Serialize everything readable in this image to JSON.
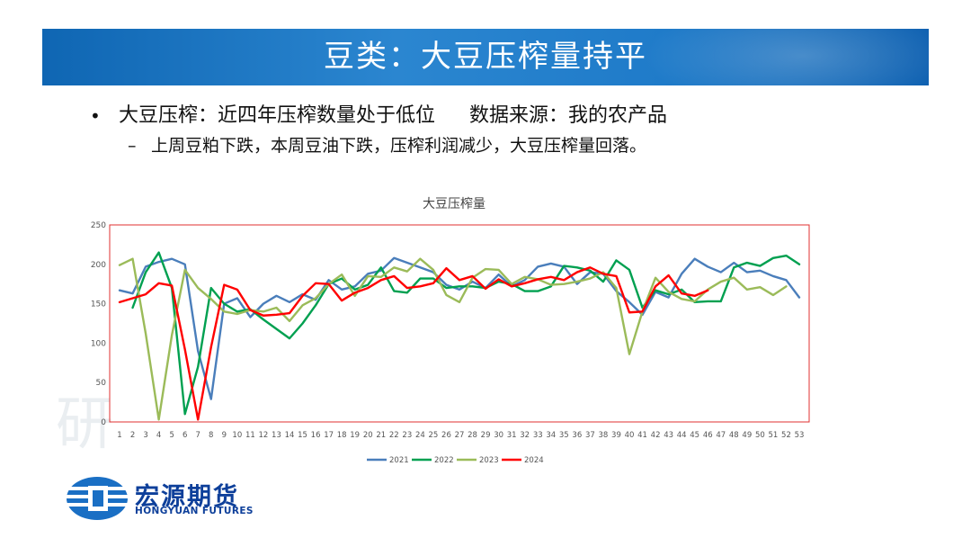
{
  "slide": {
    "title": "豆类：大豆压榨量持平",
    "bullet1": "大豆压榨：近四年压榨数量处于低位",
    "source": "数据来源：我的农产品",
    "bullet2": "上周豆粕下跌，本周豆油下跌，压榨利润减少，大豆压榨量回落。",
    "bullet_symbol": "•",
    "dash_symbol": "–"
  },
  "logo": {
    "name_cn": "宏源期货",
    "name_en": "HONGYUAN FUTURES"
  },
  "chart_data": {
    "type": "line",
    "title": "大豆压榨量",
    "xlabel": "",
    "ylabel": "",
    "x": [
      1,
      2,
      3,
      4,
      5,
      6,
      7,
      8,
      9,
      10,
      11,
      12,
      13,
      14,
      15,
      16,
      17,
      18,
      19,
      20,
      21,
      22,
      23,
      24,
      25,
      26,
      27,
      28,
      29,
      30,
      31,
      32,
      33,
      34,
      35,
      36,
      37,
      38,
      39,
      40,
      41,
      42,
      43,
      44,
      45,
      46,
      47,
      48,
      49,
      50,
      51,
      52,
      53
    ],
    "ylim": [
      0,
      250
    ],
    "yticks": [
      0,
      50,
      100,
      150,
      200,
      250
    ],
    "grid": false,
    "legend_position": "bottom",
    "series": [
      {
        "name": "2021",
        "color": "#4a7ebb",
        "values": [
          167,
          163,
          197,
          203,
          207,
          200,
          90,
          29,
          150,
          157,
          133,
          150,
          160,
          152,
          162,
          155,
          180,
          168,
          172,
          188,
          192,
          208,
          202,
          196,
          190,
          174,
          168,
          178,
          170,
          187,
          172,
          180,
          197,
          201,
          197,
          175,
          190,
          188,
          166,
          152,
          136,
          165,
          158,
          188,
          207,
          197,
          190,
          202,
          190,
          192,
          185,
          180,
          158
        ]
      },
      {
        "name": "2022",
        "color": "#00a050",
        "values": [
          null,
          145,
          190,
          215,
          170,
          10,
          70,
          170,
          150,
          140,
          143,
          130,
          118,
          106,
          125,
          148,
          175,
          182,
          168,
          174,
          196,
          166,
          164,
          182,
          182,
          170,
          172,
          172,
          170,
          178,
          175,
          166,
          166,
          172,
          198,
          196,
          192,
          178,
          205,
          193,
          145,
          167,
          162,
          168,
          152,
          153,
          153,
          196,
          202,
          198,
          208,
          211,
          200
        ]
      },
      {
        "name": "2023",
        "color": "#9bbb59",
        "values": [
          199,
          207,
          112,
          3,
          110,
          193,
          170,
          156,
          140,
          137,
          142,
          140,
          145,
          128,
          148,
          157,
          175,
          187,
          160,
          185,
          184,
          196,
          191,
          207,
          193,
          161,
          152,
          183,
          194,
          193,
          175,
          184,
          181,
          174,
          175,
          178,
          182,
          190,
          170,
          86,
          140,
          183,
          165,
          156,
          153,
          168,
          178,
          183,
          168,
          171,
          161,
          172,
          null
        ]
      },
      {
        "name": "2024",
        "color": "#ff0000",
        "values": [
          152,
          157,
          162,
          176,
          173,
          92,
          3,
          95,
          174,
          168,
          142,
          135,
          136,
          138,
          160,
          176,
          175,
          154,
          164,
          170,
          180,
          185,
          170,
          172,
          176,
          195,
          180,
          185,
          169,
          181,
          172,
          176,
          181,
          184,
          180,
          190,
          196,
          188,
          185,
          139,
          140,
          172,
          186,
          163,
          160,
          167,
          null,
          null,
          null,
          null,
          null,
          null,
          null
        ]
      }
    ]
  }
}
